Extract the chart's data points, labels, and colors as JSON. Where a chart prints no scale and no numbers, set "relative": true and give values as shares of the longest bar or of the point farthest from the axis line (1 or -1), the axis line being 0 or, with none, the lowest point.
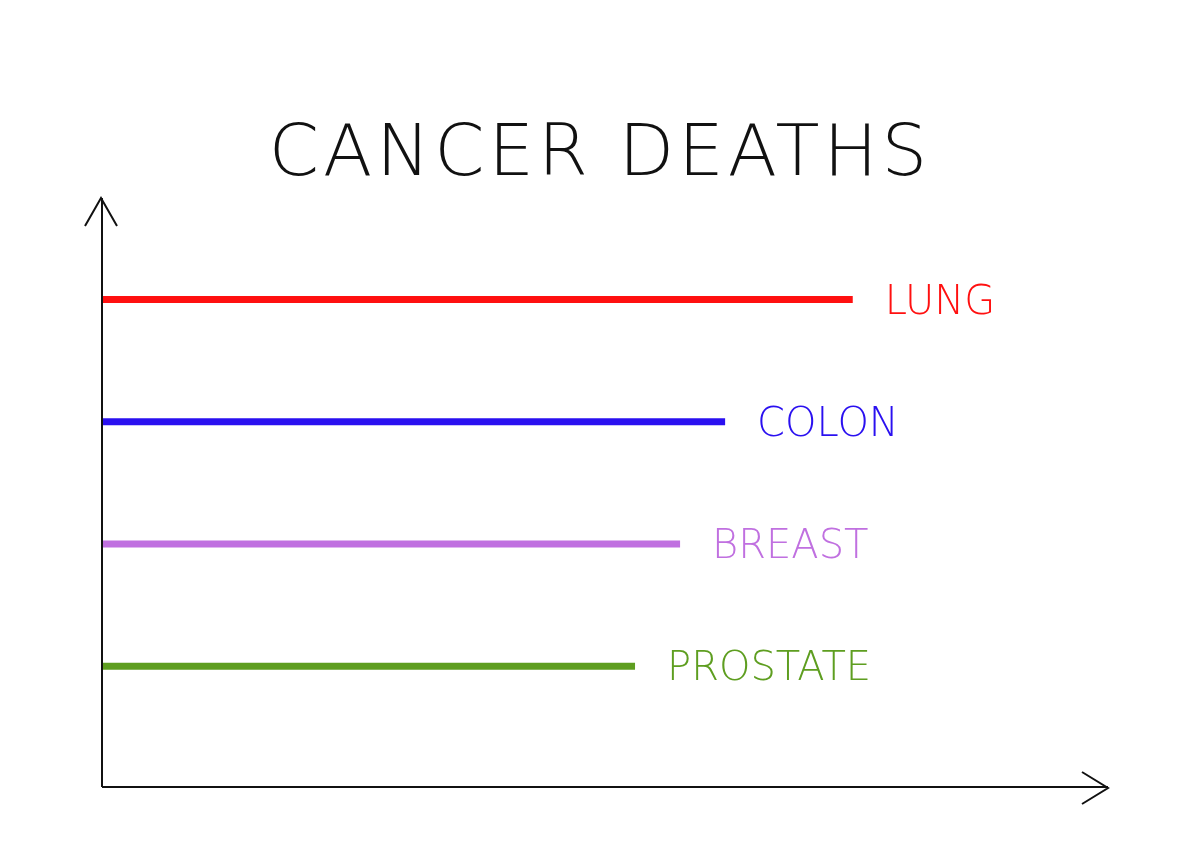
{
  "chart_data": {
    "type": "bar",
    "title": "CANCER DEATHS",
    "orientation": "horizontal",
    "relative": true,
    "categories": [
      "LUNG",
      "COLON",
      "BREAST",
      "PROSTATE"
    ],
    "values": [
      1,
      0.83,
      0.77,
      0.71
    ],
    "colors": [
      "#ff1010",
      "#2a10f0",
      "#c070e0",
      "#5e9e20"
    ]
  }
}
